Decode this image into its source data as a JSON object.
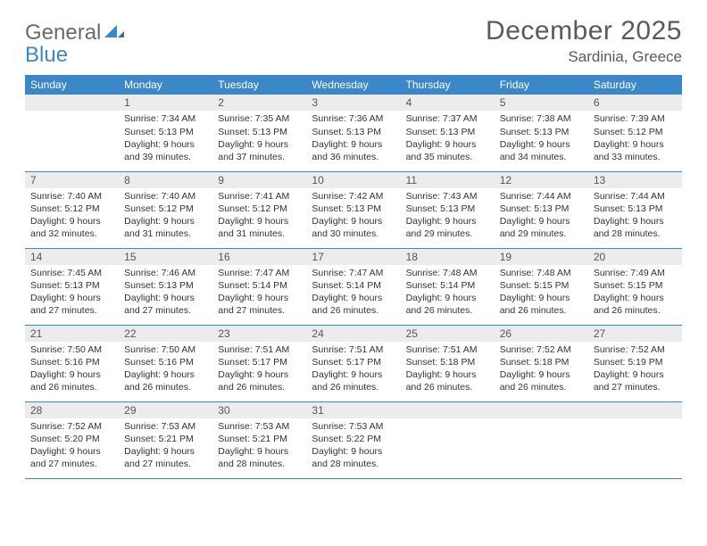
{
  "brand": {
    "word1": "General",
    "word2": "Blue"
  },
  "title": "December 2025",
  "location": "Sardinia, Greece",
  "colors": {
    "header_bg": "#3b87c8",
    "header_fg": "#ffffff",
    "daynum_bg": "#ececec",
    "daynum_fg": "#555555",
    "row_border": "#3b87c8",
    "page_bg": "#ffffff",
    "body_text": "#333333",
    "title_text": "#5a5a5a"
  },
  "dayHeaders": [
    "Sunday",
    "Monday",
    "Tuesday",
    "Wednesday",
    "Thursday",
    "Friday",
    "Saturday"
  ],
  "firstWeekday": 1,
  "days": [
    {
      "n": 1,
      "sr": "7:34 AM",
      "ss": "5:13 PM",
      "dl": "9 hours and 39 minutes."
    },
    {
      "n": 2,
      "sr": "7:35 AM",
      "ss": "5:13 PM",
      "dl": "9 hours and 37 minutes."
    },
    {
      "n": 3,
      "sr": "7:36 AM",
      "ss": "5:13 PM",
      "dl": "9 hours and 36 minutes."
    },
    {
      "n": 4,
      "sr": "7:37 AM",
      "ss": "5:13 PM",
      "dl": "9 hours and 35 minutes."
    },
    {
      "n": 5,
      "sr": "7:38 AM",
      "ss": "5:13 PM",
      "dl": "9 hours and 34 minutes."
    },
    {
      "n": 6,
      "sr": "7:39 AM",
      "ss": "5:12 PM",
      "dl": "9 hours and 33 minutes."
    },
    {
      "n": 7,
      "sr": "7:40 AM",
      "ss": "5:12 PM",
      "dl": "9 hours and 32 minutes."
    },
    {
      "n": 8,
      "sr": "7:40 AM",
      "ss": "5:12 PM",
      "dl": "9 hours and 31 minutes."
    },
    {
      "n": 9,
      "sr": "7:41 AM",
      "ss": "5:12 PM",
      "dl": "9 hours and 31 minutes."
    },
    {
      "n": 10,
      "sr": "7:42 AM",
      "ss": "5:13 PM",
      "dl": "9 hours and 30 minutes."
    },
    {
      "n": 11,
      "sr": "7:43 AM",
      "ss": "5:13 PM",
      "dl": "9 hours and 29 minutes."
    },
    {
      "n": 12,
      "sr": "7:44 AM",
      "ss": "5:13 PM",
      "dl": "9 hours and 29 minutes."
    },
    {
      "n": 13,
      "sr": "7:44 AM",
      "ss": "5:13 PM",
      "dl": "9 hours and 28 minutes."
    },
    {
      "n": 14,
      "sr": "7:45 AM",
      "ss": "5:13 PM",
      "dl": "9 hours and 27 minutes."
    },
    {
      "n": 15,
      "sr": "7:46 AM",
      "ss": "5:13 PM",
      "dl": "9 hours and 27 minutes."
    },
    {
      "n": 16,
      "sr": "7:47 AM",
      "ss": "5:14 PM",
      "dl": "9 hours and 27 minutes."
    },
    {
      "n": 17,
      "sr": "7:47 AM",
      "ss": "5:14 PM",
      "dl": "9 hours and 26 minutes."
    },
    {
      "n": 18,
      "sr": "7:48 AM",
      "ss": "5:14 PM",
      "dl": "9 hours and 26 minutes."
    },
    {
      "n": 19,
      "sr": "7:48 AM",
      "ss": "5:15 PM",
      "dl": "9 hours and 26 minutes."
    },
    {
      "n": 20,
      "sr": "7:49 AM",
      "ss": "5:15 PM",
      "dl": "9 hours and 26 minutes."
    },
    {
      "n": 21,
      "sr": "7:50 AM",
      "ss": "5:16 PM",
      "dl": "9 hours and 26 minutes."
    },
    {
      "n": 22,
      "sr": "7:50 AM",
      "ss": "5:16 PM",
      "dl": "9 hours and 26 minutes."
    },
    {
      "n": 23,
      "sr": "7:51 AM",
      "ss": "5:17 PM",
      "dl": "9 hours and 26 minutes."
    },
    {
      "n": 24,
      "sr": "7:51 AM",
      "ss": "5:17 PM",
      "dl": "9 hours and 26 minutes."
    },
    {
      "n": 25,
      "sr": "7:51 AM",
      "ss": "5:18 PM",
      "dl": "9 hours and 26 minutes."
    },
    {
      "n": 26,
      "sr": "7:52 AM",
      "ss": "5:18 PM",
      "dl": "9 hours and 26 minutes."
    },
    {
      "n": 27,
      "sr": "7:52 AM",
      "ss": "5:19 PM",
      "dl": "9 hours and 27 minutes."
    },
    {
      "n": 28,
      "sr": "7:52 AM",
      "ss": "5:20 PM",
      "dl": "9 hours and 27 minutes."
    },
    {
      "n": 29,
      "sr": "7:53 AM",
      "ss": "5:21 PM",
      "dl": "9 hours and 27 minutes."
    },
    {
      "n": 30,
      "sr": "7:53 AM",
      "ss": "5:21 PM",
      "dl": "9 hours and 28 minutes."
    },
    {
      "n": 31,
      "sr": "7:53 AM",
      "ss": "5:22 PM",
      "dl": "9 hours and 28 minutes."
    }
  ],
  "labels": {
    "sunrise": "Sunrise:",
    "sunset": "Sunset:",
    "daylight": "Daylight:"
  }
}
